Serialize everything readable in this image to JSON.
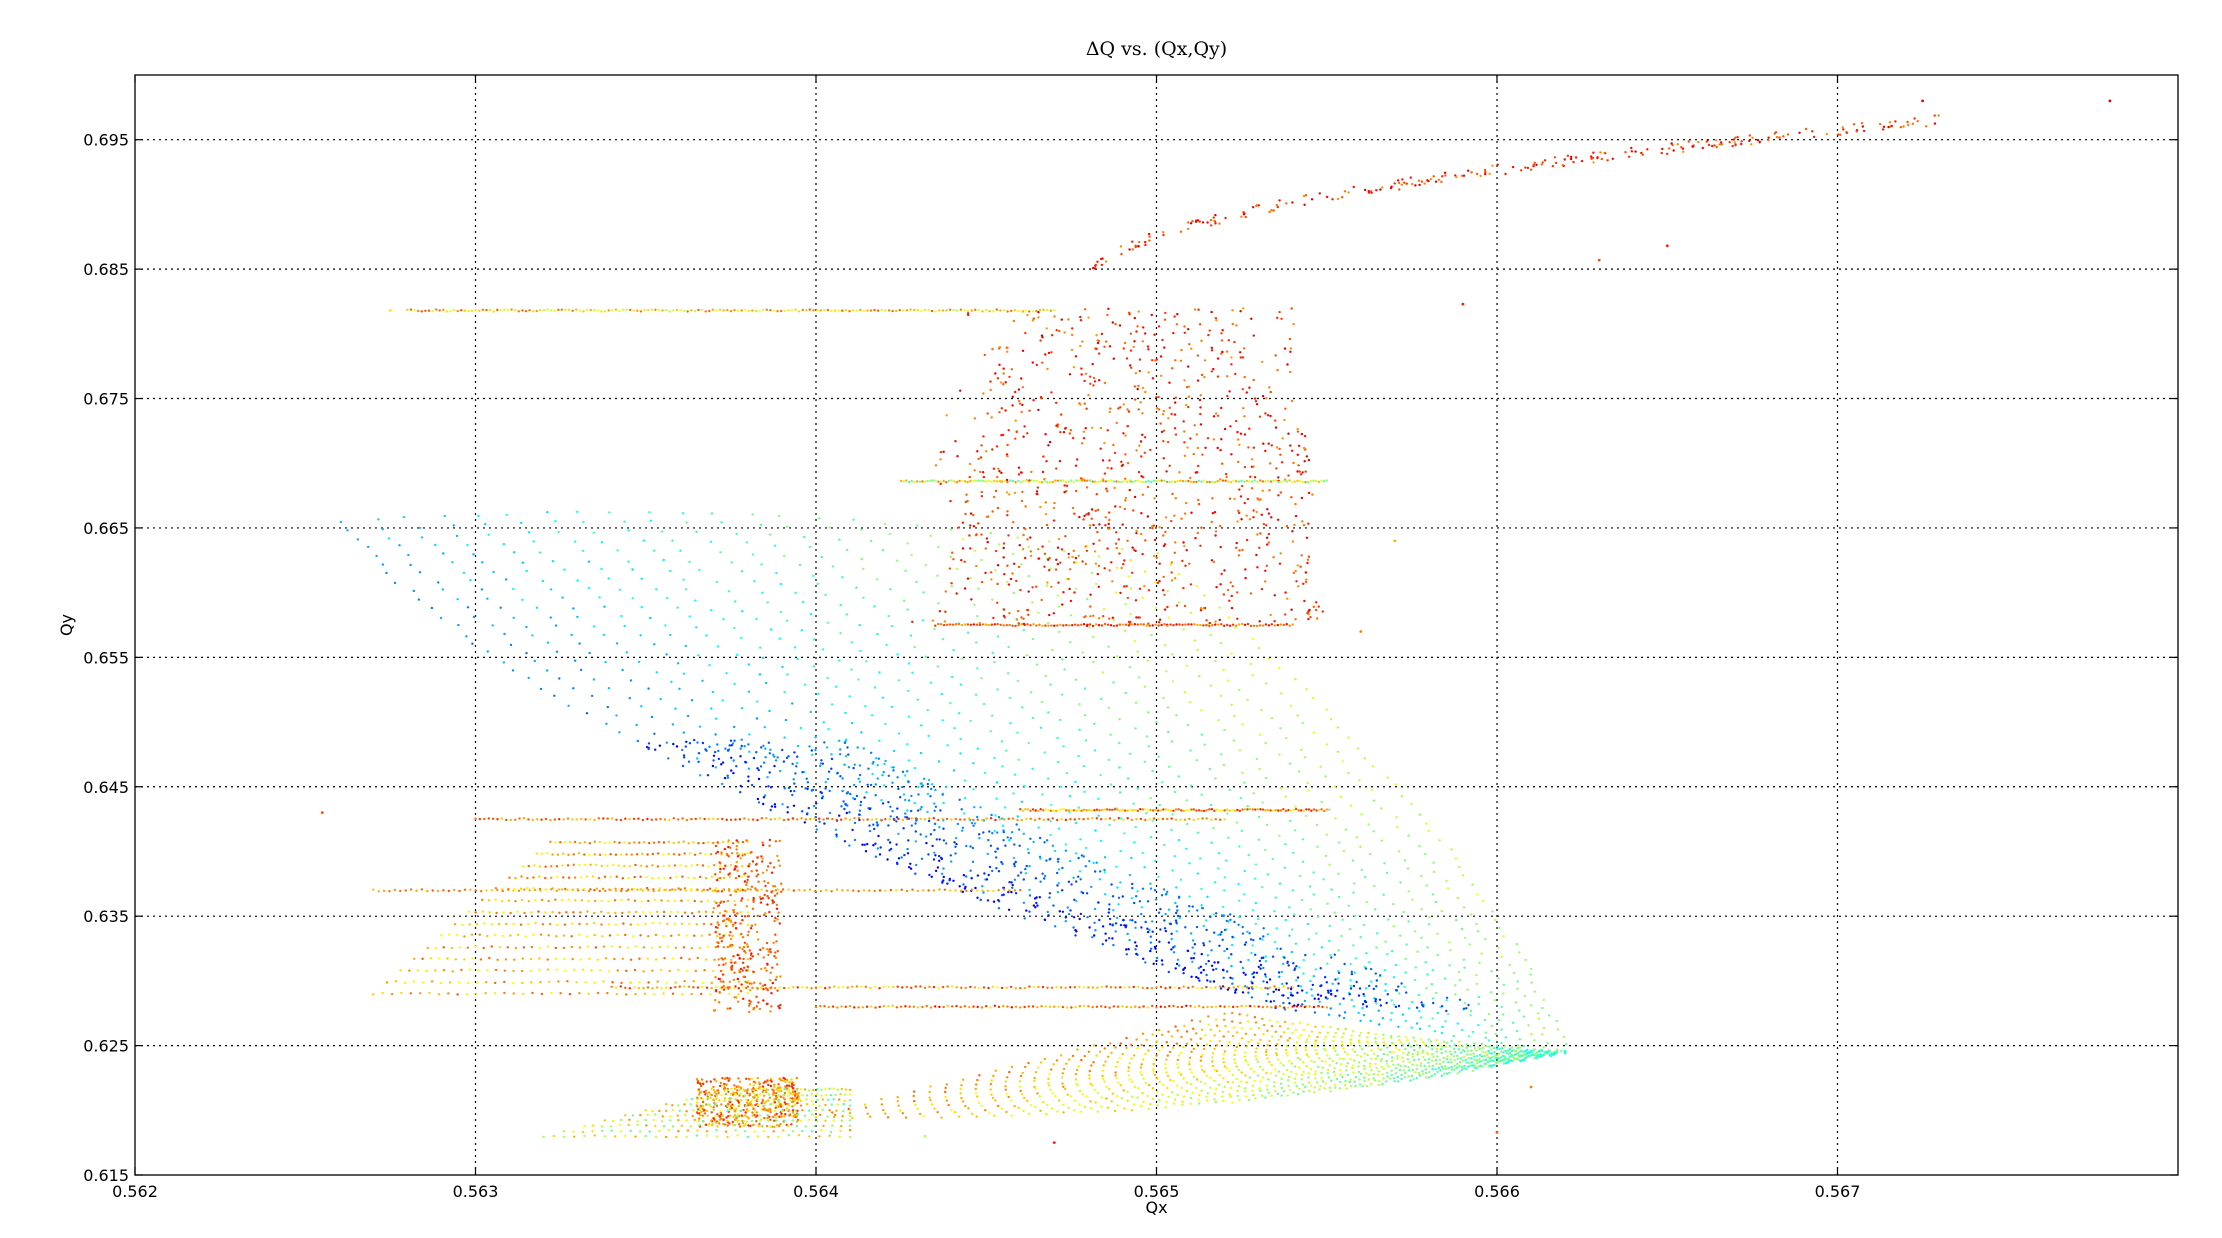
{
  "chart_data": {
    "type": "scatter",
    "title": "ΔQ vs. (Qx,Qy)",
    "xlabel": "Qx",
    "ylabel": "Qy",
    "xlim": [
      0.562,
      0.568
    ],
    "ylim": [
      0.615,
      0.7
    ],
    "x_ticks": [
      "0.562",
      "0.563",
      "0.564",
      "0.565",
      "0.566",
      "0.567"
    ],
    "y_ticks": [
      "0.615",
      "0.625",
      "0.635",
      "0.645",
      "0.655",
      "0.665",
      "0.675",
      "0.685",
      "0.695"
    ],
    "grid": true,
    "legend": "none",
    "colormap": "jet",
    "colors": {
      "low": "#0000c8",
      "mid_low": "#00d8e8",
      "mid": "#33e060",
      "mid_high": "#f0e000",
      "high": "#ff8c00"
    },
    "series": [
      {
        "region": "main-tune-sheet",
        "color_range": [
          0.15,
          0.55
        ],
        "points": [
          [
            0.5653,
            0.628
          ],
          [
            0.5662,
            0.6245
          ],
          [
            0.5643,
            0.644
          ],
          [
            0.5657,
            0.642
          ],
          [
            0.5626,
            0.664
          ],
          [
            0.5644,
            0.656
          ],
          [
            0.5659,
            0.63
          ]
        ]
      },
      {
        "region": "upper-scattered",
        "color_range": [
          0.7,
          0.95
        ],
        "points": [
          [
            0.5642,
            0.67
          ],
          [
            0.5652,
            0.658
          ],
          [
            0.5647,
            0.682
          ],
          [
            0.5655,
            0.686
          ],
          [
            0.5662,
            0.692
          ],
          [
            0.5678,
            0.698
          ]
        ]
      },
      {
        "region": "lower-left-tail",
        "color_range": [
          0.6,
          0.85
        ],
        "points": [
          [
            0.5625,
            0.643
          ],
          [
            0.563,
            0.629
          ],
          [
            0.5637,
            0.628
          ],
          [
            0.5638,
            0.637
          ],
          [
            0.5632,
            0.621
          ],
          [
            0.5638,
            0.619
          ]
        ]
      }
    ]
  }
}
